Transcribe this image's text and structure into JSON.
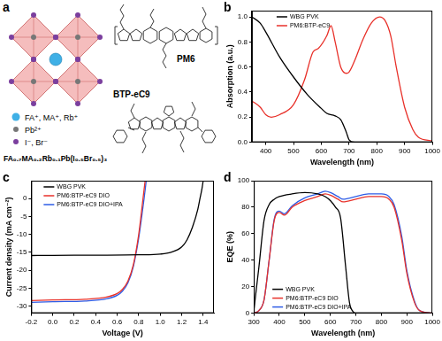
{
  "panel_labels": [
    "a",
    "b",
    "c",
    "d"
  ],
  "diagram": {
    "legend": [
      {
        "label": "FA⁺, MA⁺, Rb⁺",
        "color": "#3fb0e6"
      },
      {
        "label": "Pb²⁺",
        "color": "#777777"
      },
      {
        "label": "I⁻, Br⁻",
        "color": "#7b3f9e"
      }
    ],
    "formula": "FA₀.₇MA₀.₂Rb₀.₁Pb(I₀.₅Br₀.₅)₃",
    "molecules": [
      "PM6",
      "BTP-eC9"
    ]
  },
  "chart_data": [
    {
      "type": "line",
      "x_label": "Wavelength (nm)",
      "y_label": "Absorption (a.u.)",
      "xlim": [
        350,
        1000
      ],
      "xticks": [
        400,
        500,
        600,
        700,
        800,
        900,
        1000
      ],
      "ylim": [
        0,
        1.05
      ],
      "yticks": [
        {
          "value": 0,
          "label": "0.0"
        },
        0.2,
        0.4,
        0.6,
        0.8,
        {
          "value": 1,
          "label": "1.0"
        }
      ],
      "grid": false,
      "legend": "upper left",
      "series": [
        {
          "name": "WBG PVK",
          "color": "#000000",
          "x": [
            350,
            380,
            400,
            450,
            500,
            550,
            600,
            620,
            650,
            670,
            690,
            700,
            720,
            800,
            900,
            1000
          ],
          "values": [
            1.0,
            0.95,
            0.88,
            0.68,
            0.52,
            0.38,
            0.27,
            0.23,
            0.21,
            0.18,
            0.08,
            0.02,
            0,
            0,
            0,
            0
          ]
        },
        {
          "name": "PM6:BTP-eC9",
          "color": "#e8312a",
          "x": [
            350,
            380,
            400,
            420,
            450,
            500,
            540,
            570,
            590,
            620,
            635,
            650,
            670,
            690,
            700,
            720,
            750,
            780,
            810,
            830,
            850,
            870,
            900,
            930,
            950,
            1000
          ],
          "values": [
            0.33,
            0.28,
            0.22,
            0.2,
            0.22,
            0.3,
            0.5,
            0.72,
            0.75,
            0.85,
            0.93,
            0.8,
            0.6,
            0.55,
            0.56,
            0.65,
            0.82,
            0.95,
            1.0,
            0.97,
            0.85,
            0.6,
            0.28,
            0.1,
            0.04,
            0.01
          ]
        }
      ]
    },
    {
      "type": "line",
      "x_label": "Voltage (V)",
      "y_label": "Current density (mA cm⁻²)",
      "xlim": [
        -0.2,
        1.5
      ],
      "xticks": [
        -0.2,
        {
          "value": 0,
          "label": "0.0"
        },
        0.2,
        0.4,
        0.6,
        0.8,
        {
          "value": 1,
          "label": "1.0"
        },
        1.2,
        1.4
      ],
      "ylim": [
        -32,
        5
      ],
      "yticks": [
        0,
        -5,
        -10,
        -15,
        -20,
        -25,
        -30
      ],
      "grid": false,
      "legend": "upper left",
      "series": [
        {
          "name": "WBG PVK",
          "color": "#000000",
          "x": [
            -0.2,
            0,
            0.4,
            0.8,
            1.0,
            1.1,
            1.2,
            1.25,
            1.3,
            1.35,
            1.37,
            1.39,
            1.4
          ],
          "values": [
            -15.9,
            -15.85,
            -15.8,
            -15.7,
            -15.5,
            -15,
            -13.5,
            -11.5,
            -8,
            -3,
            0,
            3,
            5
          ]
        },
        {
          "name": "PM6:BTP-eC9 DIO",
          "color": "#e8312a",
          "x": [
            -0.2,
            0,
            0.3,
            0.5,
            0.6,
            0.65,
            0.7,
            0.75,
            0.8,
            0.84,
            0.86
          ],
          "values": [
            -28.5,
            -28.3,
            -28.1,
            -27.5,
            -26.5,
            -25.3,
            -23,
            -18.5,
            -10,
            0,
            5
          ]
        },
        {
          "name": "PM6:BTP-eC9 DIO+IPA",
          "color": "#2e5ce6",
          "x": [
            -0.2,
            0,
            0.3,
            0.5,
            0.6,
            0.65,
            0.7,
            0.75,
            0.8,
            0.85,
            0.87
          ],
          "values": [
            -29,
            -28.8,
            -28.6,
            -28,
            -27,
            -25.8,
            -23.5,
            -19,
            -11,
            0,
            5
          ]
        }
      ]
    },
    {
      "type": "line",
      "x_label": "Wavelength (nm)",
      "y_label": "EQE (%)",
      "xlim": [
        300,
        1000
      ],
      "xticks": [
        300,
        400,
        500,
        600,
        700,
        800,
        900,
        1000
      ],
      "ylim": [
        0,
        100
      ],
      "yticks": [
        0,
        20,
        40,
        60,
        80,
        100
      ],
      "grid": false,
      "legend": "lower left",
      "series": [
        {
          "name": "WBG PVK",
          "color": "#000000",
          "x": [
            300,
            320,
            340,
            360,
            380,
            400,
            450,
            500,
            550,
            580,
            600,
            620,
            640,
            660,
            675,
            690,
            700,
            750,
            1000
          ],
          "values": [
            2,
            35,
            70,
            82,
            86,
            88,
            90,
            91,
            90,
            88,
            85,
            80,
            72,
            35,
            8,
            1,
            0,
            0,
            0
          ]
        },
        {
          "name": "PM6:BTP-eC9 DIO",
          "color": "#e8312a",
          "x": [
            300,
            320,
            340,
            360,
            380,
            400,
            420,
            450,
            500,
            550,
            580,
            600,
            630,
            650,
            700,
            750,
            800,
            830,
            850,
            880,
            900,
            930,
            950,
            1000
          ],
          "values": [
            0,
            2,
            10,
            40,
            70,
            76,
            74,
            80,
            85,
            88,
            90,
            89,
            86,
            84,
            86,
            88,
            88,
            86,
            80,
            55,
            30,
            8,
            2,
            0
          ]
        },
        {
          "name": "PM6:BTP-eC9 DIO+IPA",
          "color": "#2e5ce6",
          "x": [
            300,
            320,
            340,
            360,
            380,
            400,
            420,
            450,
            500,
            550,
            580,
            600,
            630,
            650,
            700,
            750,
            800,
            830,
            850,
            880,
            900,
            930,
            950,
            1000
          ],
          "values": [
            0,
            2,
            10,
            40,
            71,
            77,
            75,
            81,
            87,
            90,
            92,
            91,
            88,
            86,
            88,
            90,
            90,
            88,
            82,
            58,
            32,
            9,
            2,
            0
          ]
        }
      ]
    }
  ]
}
